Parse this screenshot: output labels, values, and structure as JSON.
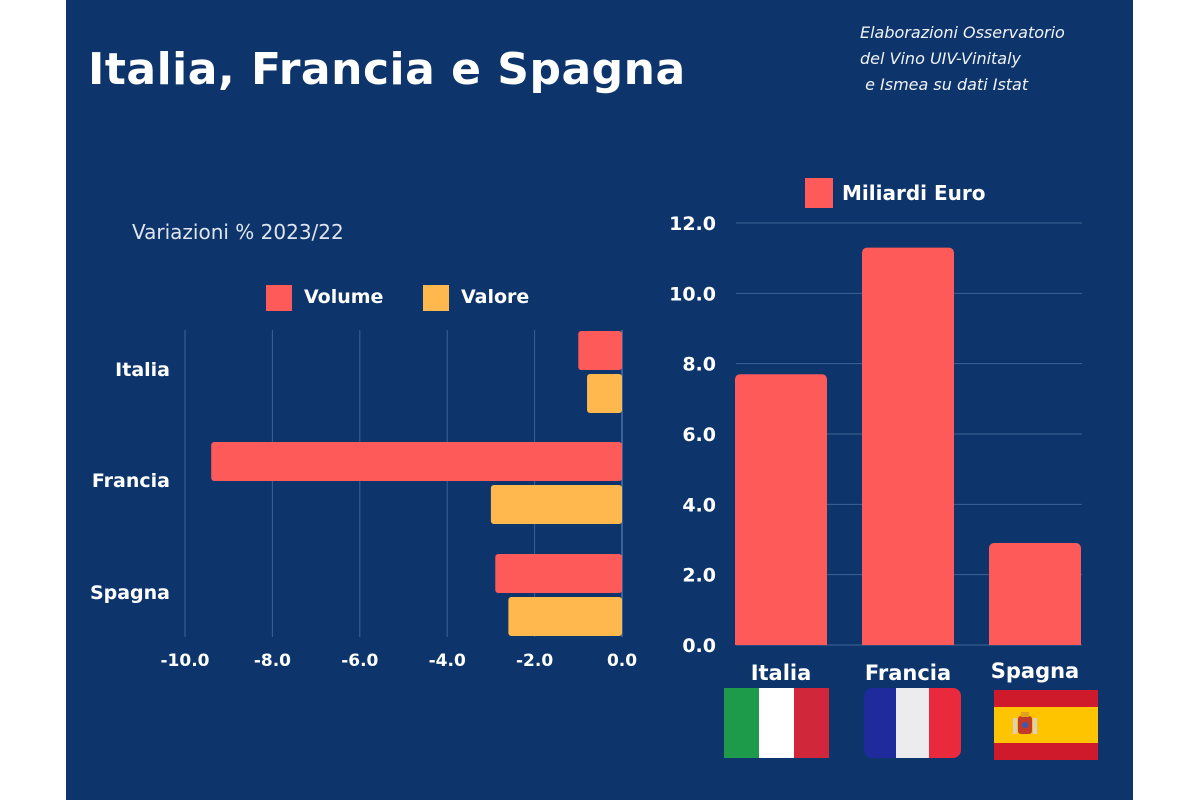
{
  "title": "Italia, Francia e Spagna",
  "source_lines": [
    "Elaborazioni Osservatorio",
    "del Vino UIV-Vinitaly",
    " e Ismea su dati Istat"
  ],
  "colors": {
    "background": "#0d356b",
    "volume": "#ff5a5a",
    "valore": "#ffb84d",
    "gridline": "#3e6296",
    "text": "#ffffff"
  },
  "flags": [
    {
      "country": "Italia",
      "icon": "italy-flag-icon"
    },
    {
      "country": "Francia",
      "icon": "france-flag-icon"
    },
    {
      "country": "Spagna",
      "icon": "spain-flag-icon"
    }
  ],
  "chart_data": [
    {
      "type": "bar",
      "orientation": "horizontal",
      "title": "Variazioni % 2023/22",
      "categories": [
        "Italia",
        "Francia",
        "Spagna"
      ],
      "series": [
        {
          "name": "Volume",
          "color": "#ff5a5a",
          "values": [
            -1.0,
            -9.4,
            -2.9
          ]
        },
        {
          "name": "Valore",
          "color": "#ffb84d",
          "values": [
            -0.8,
            -3.0,
            -2.6
          ]
        }
      ],
      "xlim": [
        -10,
        0
      ],
      "xticks": [
        -10,
        -8,
        -6,
        -4,
        -2,
        0
      ],
      "xtick_labels": [
        "-10.0",
        "-8.0",
        "-6.0",
        "-4.0",
        "-2.0",
        "0.0"
      ],
      "xlabel": "",
      "ylabel": "",
      "grid": true,
      "legend": "top"
    },
    {
      "type": "bar",
      "orientation": "vertical",
      "title": "",
      "categories": [
        "Italia",
        "Francia",
        "Spagna"
      ],
      "series": [
        {
          "name": "Miliardi Euro",
          "color": "#ff5a5a",
          "values": [
            7.7,
            11.3,
            2.9
          ]
        }
      ],
      "ylim": [
        0,
        12
      ],
      "yticks": [
        0,
        2,
        4,
        6,
        8,
        10,
        12
      ],
      "ytick_labels": [
        "0.0",
        "2.0",
        "4.0",
        "6.0",
        "8.0",
        "10.0",
        "12.0"
      ],
      "xlabel": "",
      "ylabel": "",
      "grid": true,
      "legend": "top"
    }
  ]
}
